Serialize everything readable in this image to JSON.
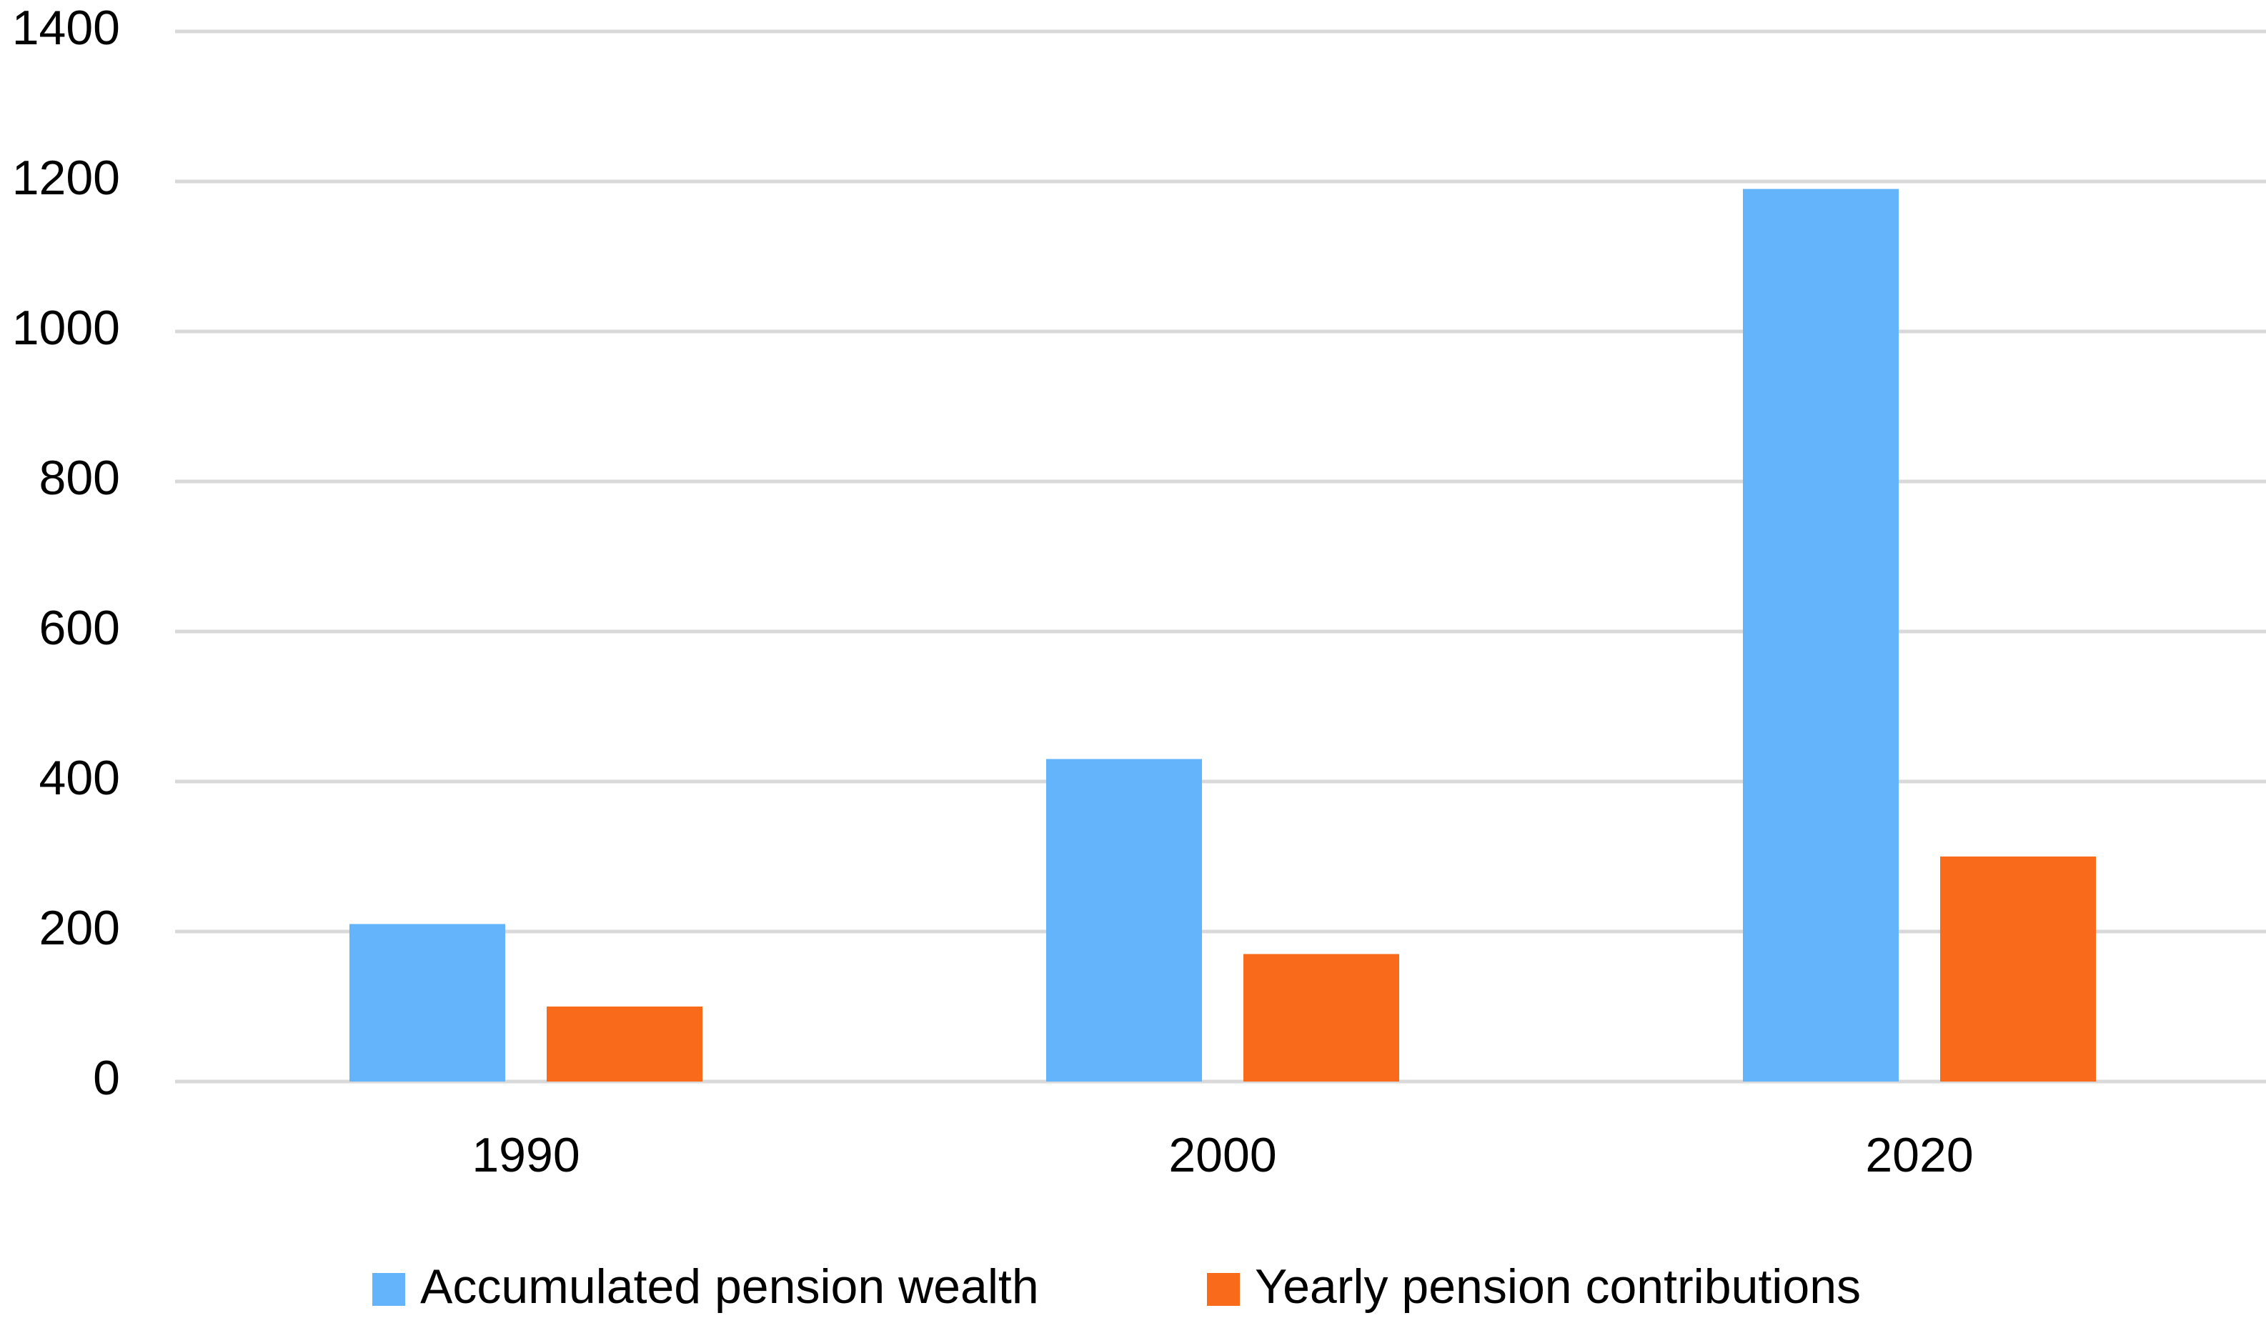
{
  "chart_data": {
    "type": "bar",
    "categories": [
      "1990",
      "2000",
      "2020"
    ],
    "series": [
      {
        "name": "Accumulated pension wealth",
        "values": [
          210,
          430,
          1190
        ],
        "color": "#63b4fb"
      },
      {
        "name": "Yearly pension contributions",
        "values": [
          100,
          170,
          300
        ],
        "color": "#f96a1b"
      }
    ],
    "y_ticks": [
      0,
      200,
      400,
      600,
      800,
      1000,
      1200,
      1400
    ],
    "ylim": [
      0,
      1400
    ],
    "title": "",
    "xlabel": "",
    "ylabel": "",
    "grid": true,
    "grid_color": "#d9d9d9",
    "legend_position": "bottom-center"
  }
}
